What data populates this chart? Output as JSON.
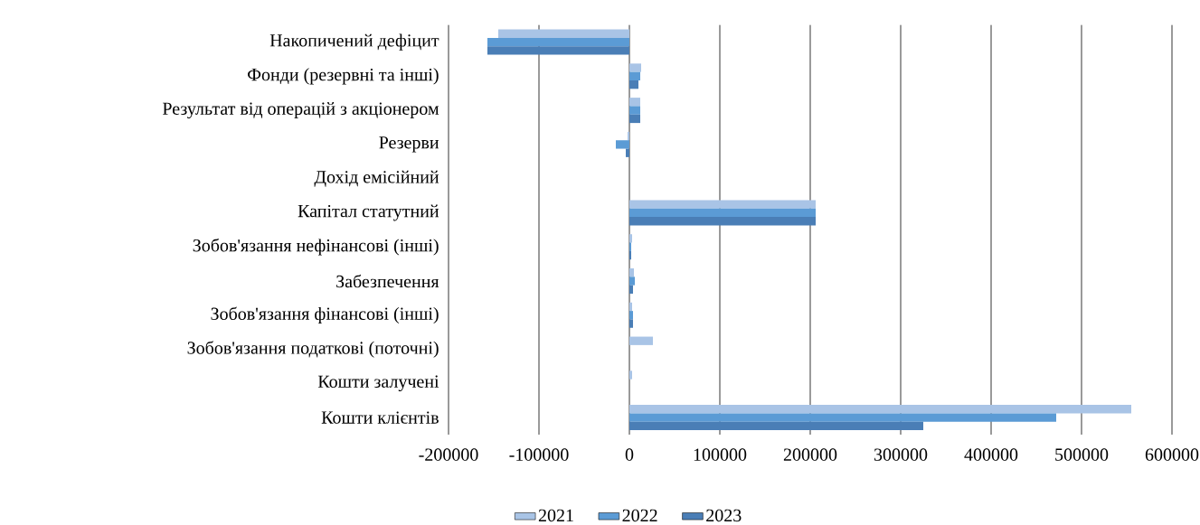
{
  "chart_data": {
    "type": "bar",
    "orientation": "horizontal",
    "categories": [
      "Накопичений дефіцит",
      "Фонди (резервні та інші)",
      "Результат від операцій з акціонером",
      "Резерви",
      "Дохід емісійний",
      "Капітал статутний",
      "Зобов'язання нефінансові (інші)",
      "Забезпечення",
      "Зобов'язання фінансові (інші)",
      "Зобов'язання податкові (поточні)",
      "Кошти залучені",
      "Кошти клієнтів"
    ],
    "series": [
      {
        "name": "2021",
        "color": "#a9c4e6",
        "values": [
          -145000,
          13000,
          12000,
          -2000,
          0,
          206000,
          3000,
          5000,
          3000,
          26000,
          3000,
          555000
        ]
      },
      {
        "name": "2022",
        "color": "#5b9bd5",
        "values": [
          -157000,
          12000,
          12000,
          -15000,
          0,
          206000,
          2000,
          6000,
          4000,
          0,
          0,
          472000
        ]
      },
      {
        "name": "2023",
        "color": "#4a7eb6",
        "values": [
          -157000,
          10000,
          12000,
          -4000,
          0,
          206000,
          2000,
          4000,
          4000,
          0,
          0,
          325000
        ]
      }
    ],
    "xlim": [
      -200000,
      600000
    ],
    "xticks": [
      -200000,
      -100000,
      0,
      100000,
      200000,
      300000,
      400000,
      500000,
      600000
    ],
    "grid": "x",
    "legend": "bottom"
  }
}
